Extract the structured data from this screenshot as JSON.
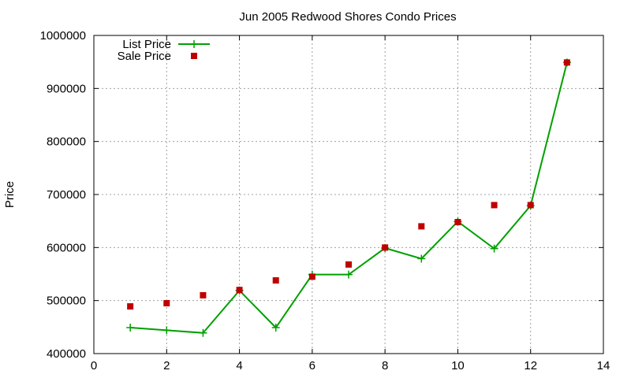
{
  "chart_data": {
    "type": "line",
    "title": "Jun 2005 Redwood Shores Condo Prices",
    "xlabel": "",
    "ylabel": "Price",
    "xlim": [
      0,
      14
    ],
    "ylim": [
      400000,
      1000000
    ],
    "x_ticks": [
      0,
      2,
      4,
      6,
      8,
      10,
      12,
      14
    ],
    "y_ticks": [
      400000,
      500000,
      600000,
      700000,
      800000,
      900000,
      1000000
    ],
    "grid": true,
    "legend_position": "top-left",
    "series": [
      {
        "name": "List Price",
        "style": "line+cross",
        "color": "#00a000",
        "x": [
          1,
          2,
          3,
          4,
          5,
          6,
          7,
          8,
          9,
          10,
          11,
          12,
          13
        ],
        "values": [
          449000,
          444000,
          439000,
          519000,
          449000,
          549000,
          549000,
          599000,
          579000,
          649000,
          598000,
          679000,
          949000
        ]
      },
      {
        "name": "Sale Price",
        "style": "square-points",
        "color": "#c00000",
        "x": [
          1,
          2,
          3,
          4,
          5,
          6,
          7,
          8,
          9,
          10,
          11,
          12,
          13
        ],
        "values": [
          489000,
          495000,
          510000,
          520000,
          538000,
          545000,
          568000,
          600000,
          640000,
          648000,
          680000,
          680000,
          949000
        ]
      }
    ]
  }
}
